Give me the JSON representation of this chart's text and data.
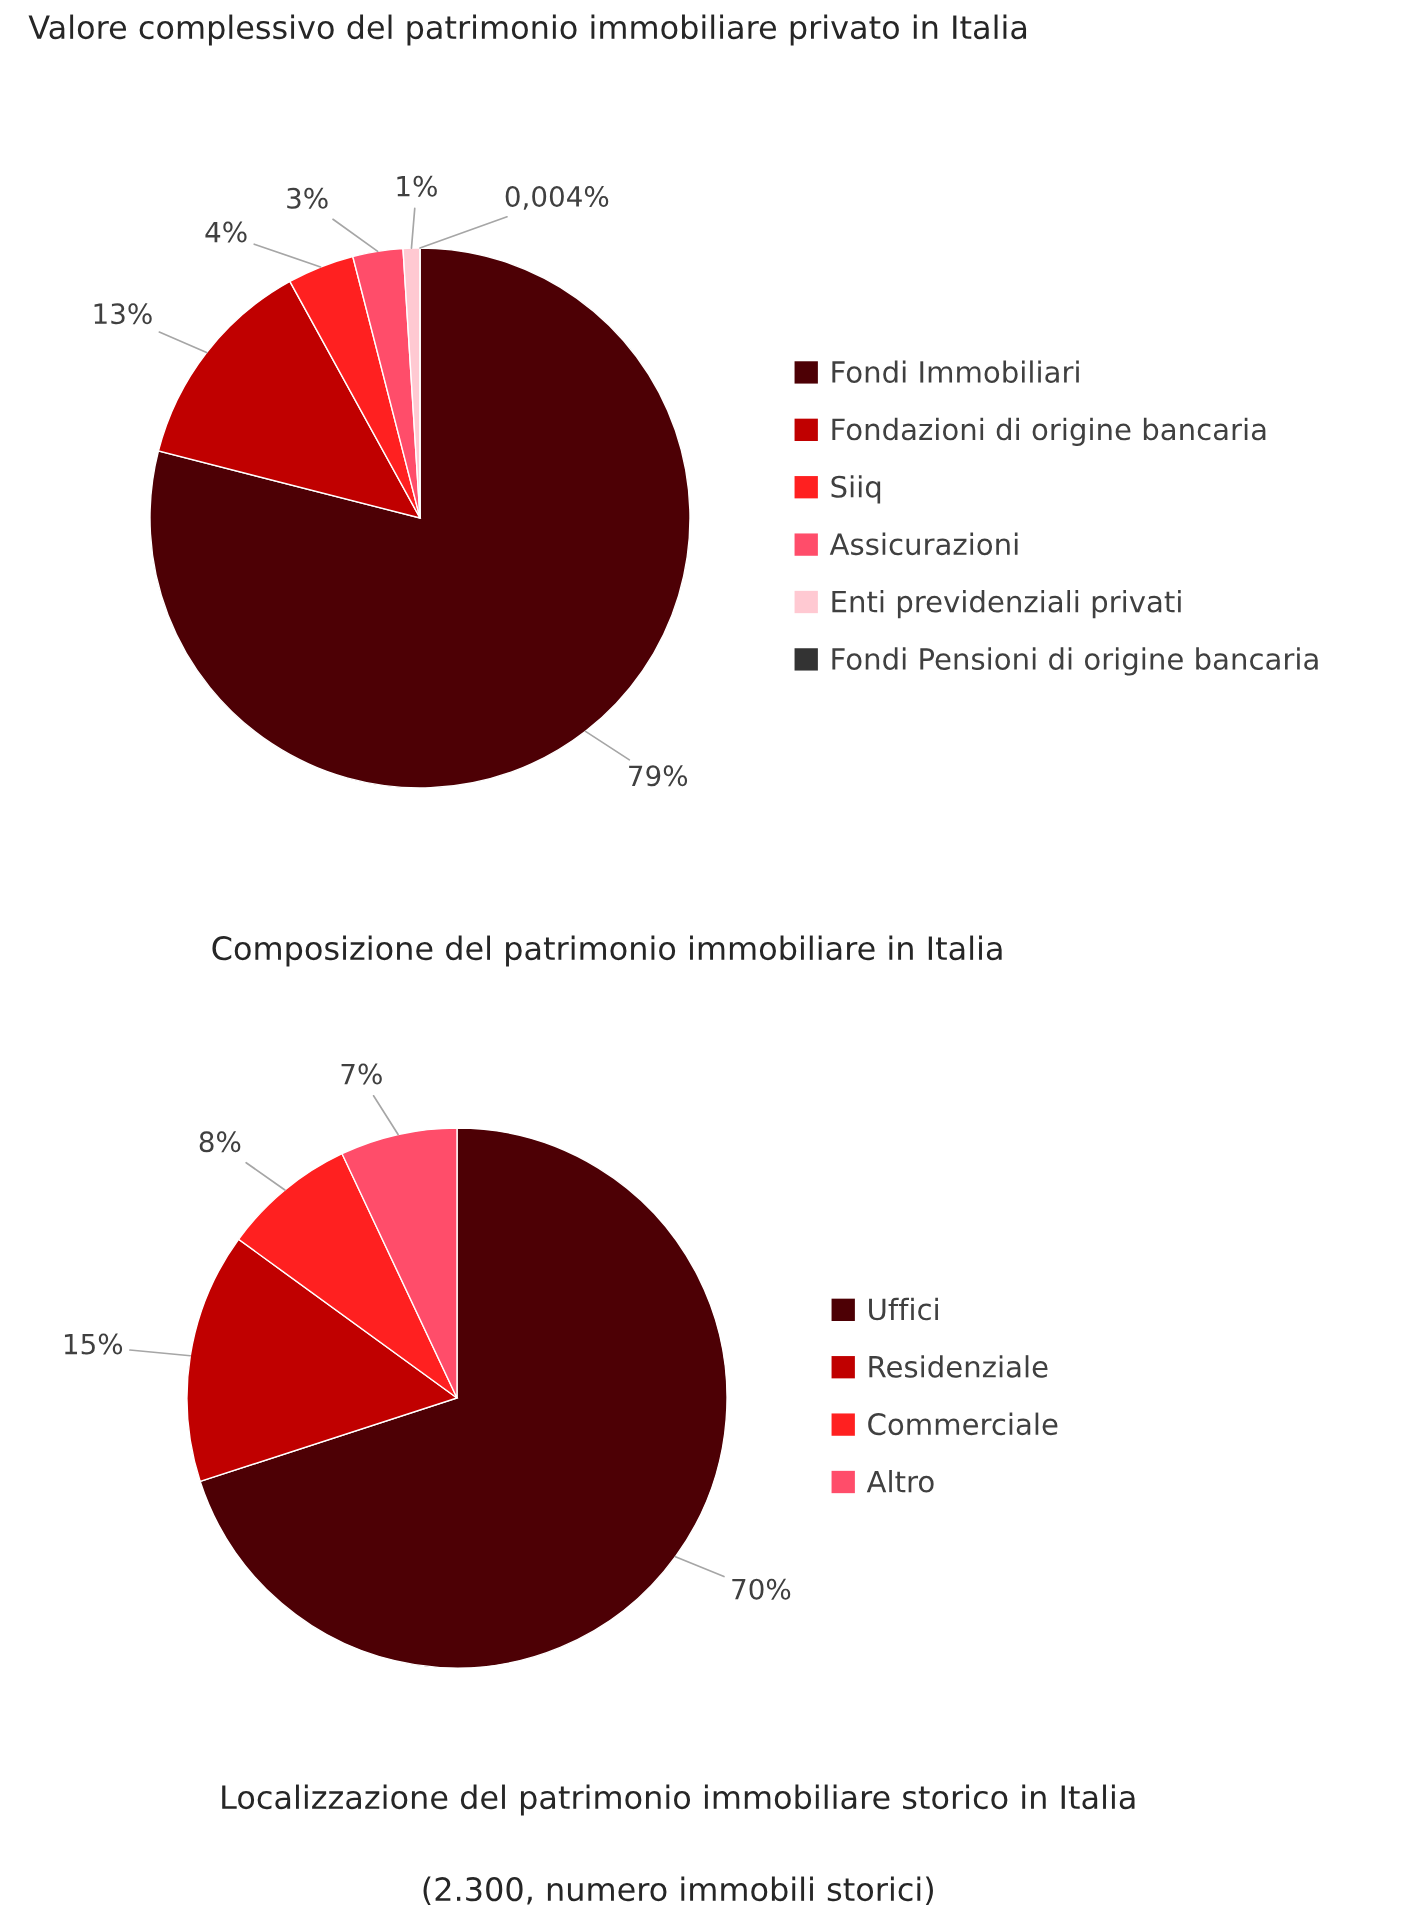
{
  "chart_data": [
    {
      "type": "pie",
      "title": "Valore complessivo del patrimonio immobiliare privato in Italia",
      "annotations": [
        "Composizione del patrimonio immobiliare in Italia"
      ],
      "categories": [
        "Fondi Immobiliari",
        "Fondazioni di origine bancaria",
        "Siiq",
        "Assicurazioni",
        "Enti previdenziali privati",
        "Fondi Pensioni di origine bancaria"
      ],
      "values": [
        79,
        13,
        4,
        3,
        1,
        0.004
      ],
      "value_labels": [
        "79%",
        "13%",
        "4%",
        "3%",
        "1%",
        "0,004%"
      ],
      "colors": [
        "#4d0005",
        "#c00000",
        "#ff2020",
        "#ff4d6a",
        "#ffc9d2",
        "#333333"
      ],
      "legend": "right"
    },
    {
      "type": "pie",
      "title": "Localizzazione del patrimonio immobiliare storico in Italia",
      "subtitle": "(2.300, numero immobili storici)",
      "categories": [
        "Uffici",
        "Residenziale",
        "Commerciale",
        "Altro"
      ],
      "values": [
        70,
        15,
        8,
        7
      ],
      "value_labels": [
        "70%",
        "15%",
        "8%",
        "7%"
      ],
      "colors": [
        "#4d0005",
        "#c00000",
        "#ff2020",
        "#ff4d6a"
      ],
      "legend": "right"
    }
  ]
}
